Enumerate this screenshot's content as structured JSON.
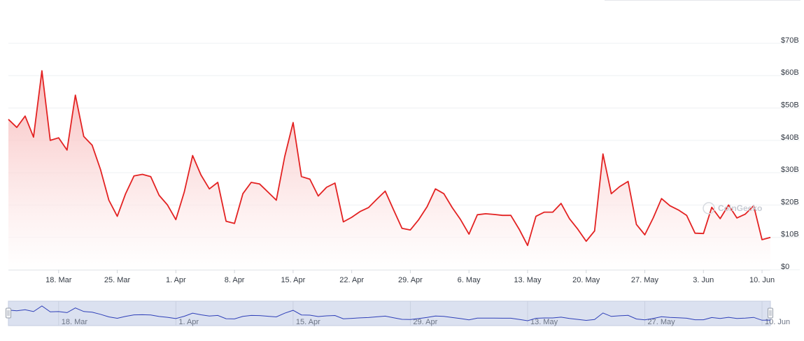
{
  "chart_data": {
    "type": "area",
    "title": "",
    "xlabel": "",
    "ylabel": "",
    "y_axis_position": "right",
    "grid": true,
    "ylim": [
      0,
      70
    ],
    "colors": {
      "line": "#e32222",
      "fill_top": "#f7b5b5",
      "fill_bottom": "#ffffff",
      "navigator_fill": "#dbe1f0",
      "navigator_line": "#2e3fb8"
    },
    "y_ticks": [
      {
        "value": 0,
        "label": "$0"
      },
      {
        "value": 10,
        "label": "$10B"
      },
      {
        "value": 20,
        "label": "$20B"
      },
      {
        "value": 30,
        "label": "$30B"
      },
      {
        "value": 40,
        "label": "$40B"
      },
      {
        "value": 50,
        "label": "$50B"
      },
      {
        "value": 60,
        "label": "$60B"
      },
      {
        "value": 70,
        "label": "$70B"
      }
    ],
    "x_ticks": [
      {
        "date": "2024-03-18",
        "label": "18. Mar"
      },
      {
        "date": "2024-03-25",
        "label": "25. Mar"
      },
      {
        "date": "2024-04-01",
        "label": "1. Apr"
      },
      {
        "date": "2024-04-08",
        "label": "8. Apr"
      },
      {
        "date": "2024-04-15",
        "label": "15. Apr"
      },
      {
        "date": "2024-04-22",
        "label": "22. Apr"
      },
      {
        "date": "2024-04-29",
        "label": "29. Apr"
      },
      {
        "date": "2024-05-06",
        "label": "6. May"
      },
      {
        "date": "2024-05-13",
        "label": "13. May"
      },
      {
        "date": "2024-05-20",
        "label": "20. May"
      },
      {
        "date": "2024-05-27",
        "label": "27. May"
      },
      {
        "date": "2024-06-03",
        "label": "3. Jun"
      },
      {
        "date": "2024-06-10",
        "label": "10. Jun"
      }
    ],
    "navigator_ticks": [
      {
        "date": "2024-03-18",
        "label": "18. Mar"
      },
      {
        "date": "2024-04-01",
        "label": "1. Apr"
      },
      {
        "date": "2024-04-15",
        "label": "15. Apr"
      },
      {
        "date": "2024-04-29",
        "label": "29. Apr"
      },
      {
        "date": "2024-05-13",
        "label": "13. May"
      },
      {
        "date": "2024-05-27",
        "label": "27. May"
      },
      {
        "date": "2024-06-10",
        "label": "10. Jun"
      }
    ],
    "x": [
      "2024-03-12",
      "2024-03-13",
      "2024-03-14",
      "2024-03-15",
      "2024-03-16",
      "2024-03-17",
      "2024-03-18",
      "2024-03-19",
      "2024-03-20",
      "2024-03-21",
      "2024-03-22",
      "2024-03-23",
      "2024-03-24",
      "2024-03-25",
      "2024-03-26",
      "2024-03-27",
      "2024-03-28",
      "2024-03-29",
      "2024-03-30",
      "2024-03-31",
      "2024-04-01",
      "2024-04-02",
      "2024-04-03",
      "2024-04-04",
      "2024-04-05",
      "2024-04-06",
      "2024-04-07",
      "2024-04-08",
      "2024-04-09",
      "2024-04-10",
      "2024-04-11",
      "2024-04-12",
      "2024-04-13",
      "2024-04-14",
      "2024-04-15",
      "2024-04-16",
      "2024-04-17",
      "2024-04-18",
      "2024-04-19",
      "2024-04-20",
      "2024-04-21",
      "2024-04-22",
      "2024-04-23",
      "2024-04-24",
      "2024-04-25",
      "2024-04-26",
      "2024-04-27",
      "2024-04-28",
      "2024-04-29",
      "2024-04-30",
      "2024-05-01",
      "2024-05-02",
      "2024-05-03",
      "2024-05-04",
      "2024-05-05",
      "2024-05-06",
      "2024-05-07",
      "2024-05-08",
      "2024-05-09",
      "2024-05-10",
      "2024-05-11",
      "2024-05-12",
      "2024-05-13",
      "2024-05-14",
      "2024-05-15",
      "2024-05-16",
      "2024-05-17",
      "2024-05-18",
      "2024-05-19",
      "2024-05-20",
      "2024-05-21",
      "2024-05-22",
      "2024-05-23",
      "2024-05-24",
      "2024-05-25",
      "2024-05-26",
      "2024-05-27",
      "2024-05-28",
      "2024-05-29",
      "2024-05-30",
      "2024-05-31",
      "2024-06-01",
      "2024-06-02",
      "2024-06-03",
      "2024-06-04",
      "2024-06-05",
      "2024-06-06",
      "2024-06-07",
      "2024-06-08",
      "2024-06-09",
      "2024-06-10",
      "2024-06-11"
    ],
    "series": [
      {
        "values": [
          46.5,
          44,
          47.5,
          41,
          61.5,
          40,
          40.8,
          37,
          54,
          41.2,
          38.5,
          31,
          21.5,
          16.5,
          23.5,
          29,
          29.5,
          28.8,
          23,
          20,
          15.5,
          24,
          35.3,
          29.3,
          25,
          27,
          15,
          14.3,
          23.5,
          27,
          26.5,
          24,
          21.5,
          35,
          45.5,
          28.8,
          28,
          22.8,
          25.5,
          26.8,
          14.8,
          16.2,
          18,
          19.2,
          21.8,
          24.3,
          18.5,
          12.8,
          12.3,
          15.5,
          19.5,
          25,
          23.5,
          19.2,
          15.5,
          11,
          17,
          17.3,
          17.1,
          16.8,
          16.8,
          12.5,
          7.5,
          16.5,
          17.8,
          17.8,
          20.5,
          15.8,
          12.5,
          8.8,
          12,
          35.8,
          23.5,
          25.7,
          27.3,
          14,
          10.8,
          16,
          22,
          19.8,
          18.5,
          16.8,
          11.3,
          11.2,
          19.3,
          15.8,
          20,
          16,
          17.2,
          19.8,
          9.3,
          10
        ]
      }
    ],
    "watermark": "CoinGecko"
  }
}
